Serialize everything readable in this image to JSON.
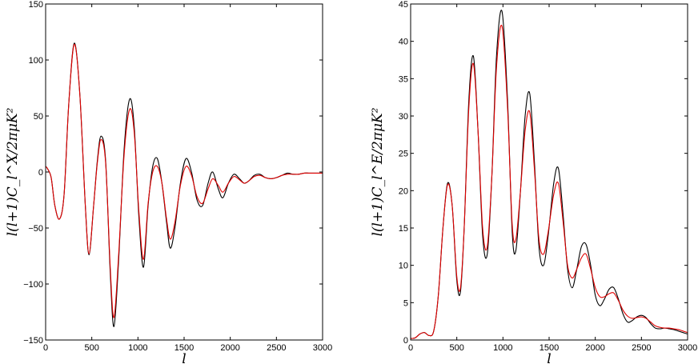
{
  "chart_data": [
    {
      "type": "line",
      "title": "",
      "xlabel": "l",
      "ylabel": "l(l+1)C_l^X/2πμK²",
      "xlim": [
        0,
        3000
      ],
      "ylim": [
        -150,
        150
      ],
      "xticks": [
        "0",
        "500",
        "1000",
        "1500",
        "2000",
        "2500",
        "3000"
      ],
      "yticks": [
        "−150",
        "−100",
        "−50",
        "0",
        "50",
        "100",
        "150"
      ],
      "grid": false,
      "legend": "none",
      "series": [
        {
          "color": "#000000",
          "x": [
            0,
            20,
            60,
            100,
            150,
            200,
            250,
            310,
            370,
            430,
            470,
            520,
            560,
            600,
            650,
            700,
            740,
            790,
            850,
            910,
            960,
            1010,
            1060,
            1110,
            1160,
            1210,
            1260,
            1310,
            1350,
            1400,
            1460,
            1520,
            1580,
            1640,
            1700,
            1760,
            1810,
            1870,
            1920,
            1980,
            2040,
            2100,
            2150,
            2200,
            2260,
            2320,
            2380,
            2440,
            2500,
            2560,
            2620,
            2680,
            2740,
            2800,
            2850,
            2900,
            3000
          ],
          "y": [
            5,
            3,
            -5,
            -30,
            -42,
            -20,
            60,
            115,
            70,
            -30,
            -74,
            -30,
            10,
            32,
            10,
            -90,
            -138,
            -80,
            20,
            65,
            40,
            -40,
            -85,
            -30,
            5,
            12,
            -10,
            -45,
            -68,
            -50,
            -10,
            12,
            0,
            -25,
            -30,
            -10,
            0,
            -15,
            -23,
            -10,
            -2,
            -6,
            -10,
            -8,
            -3,
            -2,
            -5,
            -6,
            -5,
            -3,
            -1,
            -2,
            -2,
            -1,
            -1,
            -1,
            -1
          ]
        },
        {
          "color": "#e00000",
          "x": [
            0,
            20,
            60,
            100,
            150,
            200,
            250,
            310,
            370,
            430,
            470,
            520,
            560,
            600,
            650,
            700,
            740,
            790,
            850,
            910,
            960,
            1010,
            1060,
            1110,
            1160,
            1210,
            1260,
            1310,
            1350,
            1400,
            1460,
            1520,
            1580,
            1640,
            1700,
            1760,
            1810,
            1870,
            1920,
            1980,
            2040,
            2100,
            2150,
            2200,
            2260,
            2320,
            2380,
            2440,
            2500,
            2560,
            2620,
            2680,
            2740,
            2800,
            2850,
            2900,
            3000
          ],
          "y": [
            5,
            3,
            -5,
            -30,
            -42,
            -20,
            60,
            114,
            70,
            -30,
            -73,
            -30,
            8,
            29,
            8,
            -85,
            -130,
            -75,
            15,
            56,
            35,
            -35,
            -78,
            -28,
            0,
            5,
            -10,
            -42,
            -60,
            -45,
            -12,
            5,
            -3,
            -22,
            -28,
            -15,
            -6,
            -12,
            -18,
            -10,
            -4,
            -7,
            -10,
            -8,
            -4,
            -3,
            -5,
            -6,
            -5,
            -3,
            -2,
            -2,
            -2,
            -1,
            -1,
            -1,
            -1
          ]
        }
      ]
    },
    {
      "type": "line",
      "title": "",
      "xlabel": "l",
      "ylabel": "l(l+1)C_l^E/2πμK²",
      "xlim": [
        0,
        3000
      ],
      "ylim": [
        0,
        45
      ],
      "xticks": [
        "0",
        "500",
        "1000",
        "1500",
        "2000",
        "2500",
        "3000"
      ],
      "yticks": [
        "0",
        "5",
        "10",
        "15",
        "20",
        "25",
        "30",
        "35",
        "40",
        "45"
      ],
      "grid": false,
      "legend": "none",
      "series": [
        {
          "color": "#000000",
          "x": [
            0,
            50,
            100,
            150,
            200,
            250,
            300,
            350,
            400,
            450,
            500,
            540,
            580,
            630,
            680,
            730,
            780,
            830,
            880,
            930,
            990,
            1050,
            1100,
            1140,
            1190,
            1240,
            1290,
            1340,
            1390,
            1440,
            1490,
            1550,
            1600,
            1650,
            1700,
            1750,
            1800,
            1850,
            1900,
            1950,
            2000,
            2050,
            2100,
            2150,
            2200,
            2250,
            2300,
            2350,
            2400,
            2450,
            2500,
            2550,
            2600,
            2650,
            2700,
            2750,
            2800,
            2850,
            2900,
            2950,
            3000
          ],
          "y": [
            0.2,
            0.3,
            0.8,
            1.0,
            0.6,
            1.2,
            6.0,
            15.0,
            21.0,
            18.0,
            8.0,
            6.5,
            15.0,
            32.0,
            38.0,
            28.0,
            14.0,
            11.5,
            22.0,
            38.0,
            44.0,
            32.0,
            14.5,
            12.0,
            20.0,
            30.0,
            33.0,
            24.0,
            12.5,
            10.0,
            14.0,
            21.0,
            23.0,
            17.0,
            9.5,
            7.0,
            9.5,
            12.5,
            12.8,
            10.0,
            6.0,
            4.6,
            5.5,
            6.8,
            7.0,
            5.5,
            3.5,
            2.4,
            2.6,
            3.1,
            3.3,
            3.0,
            2.2,
            1.6,
            1.5,
            1.6,
            1.5,
            1.4,
            1.2,
            1.0,
            0.8
          ]
        },
        {
          "color": "#e00000",
          "x": [
            0,
            50,
            100,
            150,
            200,
            250,
            300,
            350,
            400,
            450,
            500,
            540,
            580,
            630,
            680,
            730,
            780,
            830,
            880,
            930,
            990,
            1050,
            1100,
            1140,
            1190,
            1240,
            1290,
            1340,
            1390,
            1440,
            1490,
            1550,
            1600,
            1650,
            1700,
            1750,
            1800,
            1850,
            1900,
            1950,
            2000,
            2050,
            2100,
            2150,
            2200,
            2250,
            2300,
            2350,
            2400,
            2450,
            2500,
            2550,
            2600,
            2650,
            2700,
            2750,
            2800,
            2850,
            2900,
            2950,
            3000
          ],
          "y": [
            0.2,
            0.3,
            0.8,
            1.0,
            0.6,
            1.2,
            6.0,
            15.0,
            20.8,
            18.0,
            8.5,
            7.0,
            15.0,
            31.0,
            37.0,
            28.0,
            15.0,
            12.5,
            22.0,
            36.5,
            42.0,
            31.0,
            15.5,
            13.5,
            20.0,
            28.0,
            30.5,
            23.0,
            13.5,
            11.5,
            14.5,
            19.5,
            21.0,
            16.0,
            10.0,
            8.3,
            9.5,
            11.0,
            11.5,
            9.5,
            7.0,
            5.8,
            5.8,
            6.2,
            6.3,
            5.3,
            4.0,
            3.2,
            2.9,
            3.0,
            3.1,
            2.9,
            2.4,
            1.9,
            1.7,
            1.6,
            1.6,
            1.5,
            1.4,
            1.2,
            1.0
          ]
        }
      ]
    }
  ]
}
